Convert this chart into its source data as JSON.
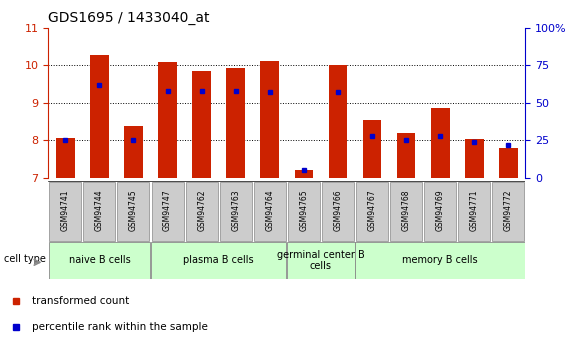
{
  "title": "GDS1695 / 1433040_at",
  "samples": [
    "GSM94741",
    "GSM94744",
    "GSM94745",
    "GSM94747",
    "GSM94762",
    "GSM94763",
    "GSM94764",
    "GSM94765",
    "GSM94766",
    "GSM94767",
    "GSM94768",
    "GSM94769",
    "GSM94771",
    "GSM94772"
  ],
  "transformed_counts": [
    8.05,
    10.28,
    8.38,
    10.08,
    9.85,
    9.93,
    10.1,
    7.2,
    10.0,
    8.55,
    8.2,
    8.85,
    8.02,
    7.78
  ],
  "percentile_ranks": [
    25,
    62,
    25,
    58,
    58,
    58,
    57,
    5,
    57,
    28,
    25,
    28,
    24,
    22
  ],
  "ylim_left": [
    7,
    11
  ],
  "ylim_right": [
    0,
    100
  ],
  "yticks_left": [
    7,
    8,
    9,
    10,
    11
  ],
  "yticks_right": [
    0,
    25,
    50,
    75,
    100
  ],
  "cell_groups": [
    {
      "label": "naive B cells",
      "indices": [
        0,
        1,
        2
      ],
      "color": "#ccffcc"
    },
    {
      "label": "plasma B cells",
      "indices": [
        3,
        4,
        5,
        6
      ],
      "color": "#ccffcc"
    },
    {
      "label": "germinal center B\ncells",
      "indices": [
        7,
        8
      ],
      "color": "#ccffcc"
    },
    {
      "label": "memory B cells",
      "indices": [
        9,
        10,
        11,
        12,
        13
      ],
      "color": "#ccffcc"
    }
  ],
  "bar_color": "#cc2200",
  "dot_color": "#0000cc",
  "bg_color": "#ffffff",
  "tick_label_bg": "#cccccc",
  "left_tick_color": "#cc2200",
  "right_tick_color": "#0000cc"
}
